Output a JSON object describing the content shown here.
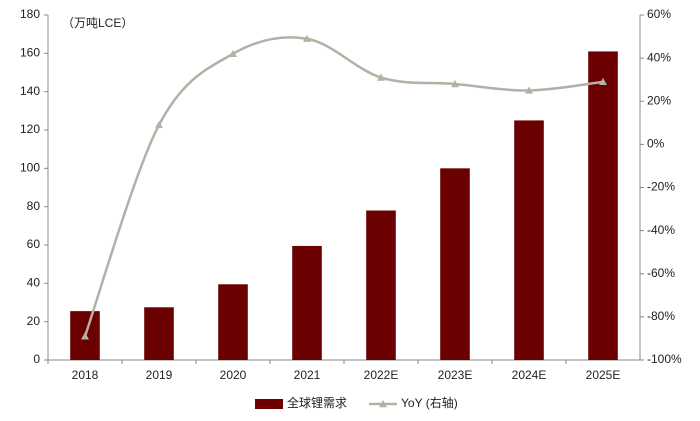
{
  "chart_data": {
    "type": "bar",
    "unit_label": "（万吨LCE）",
    "categories": [
      "2018",
      "2019",
      "2020",
      "2021",
      "2022E",
      "2023E",
      "2024E",
      "2025E"
    ],
    "series": [
      {
        "name": "全球锂需求",
        "type": "bar",
        "color": "#6b0000",
        "values": [
          25.5,
          27.5,
          39.5,
          59.5,
          78,
          100,
          125,
          161
        ]
      },
      {
        "name": "YoY (右轴)",
        "type": "line",
        "axis": "y2",
        "color": "#b5b0a5",
        "values": [
          -89,
          9,
          42,
          49,
          31,
          28,
          25,
          29
        ]
      }
    ],
    "ylim": [
      0,
      180
    ],
    "yticks": [
      0,
      20,
      40,
      60,
      80,
      100,
      120,
      140,
      160,
      180
    ],
    "y2lim": [
      -100,
      60
    ],
    "y2ticks": [
      {
        "value": -100,
        "label": "-100%"
      },
      {
        "value": -80,
        "label": "-80%"
      },
      {
        "value": -60,
        "label": "-60%"
      },
      {
        "value": -40,
        "label": "-40%"
      },
      {
        "value": -20,
        "label": "-20%"
      },
      {
        "value": 0,
        "label": "0%"
      },
      {
        "value": 20,
        "label": "20%"
      },
      {
        "value": 40,
        "label": "40%"
      },
      {
        "value": 60,
        "label": "60%"
      }
    ],
    "grid": false,
    "legend": "bottom"
  }
}
